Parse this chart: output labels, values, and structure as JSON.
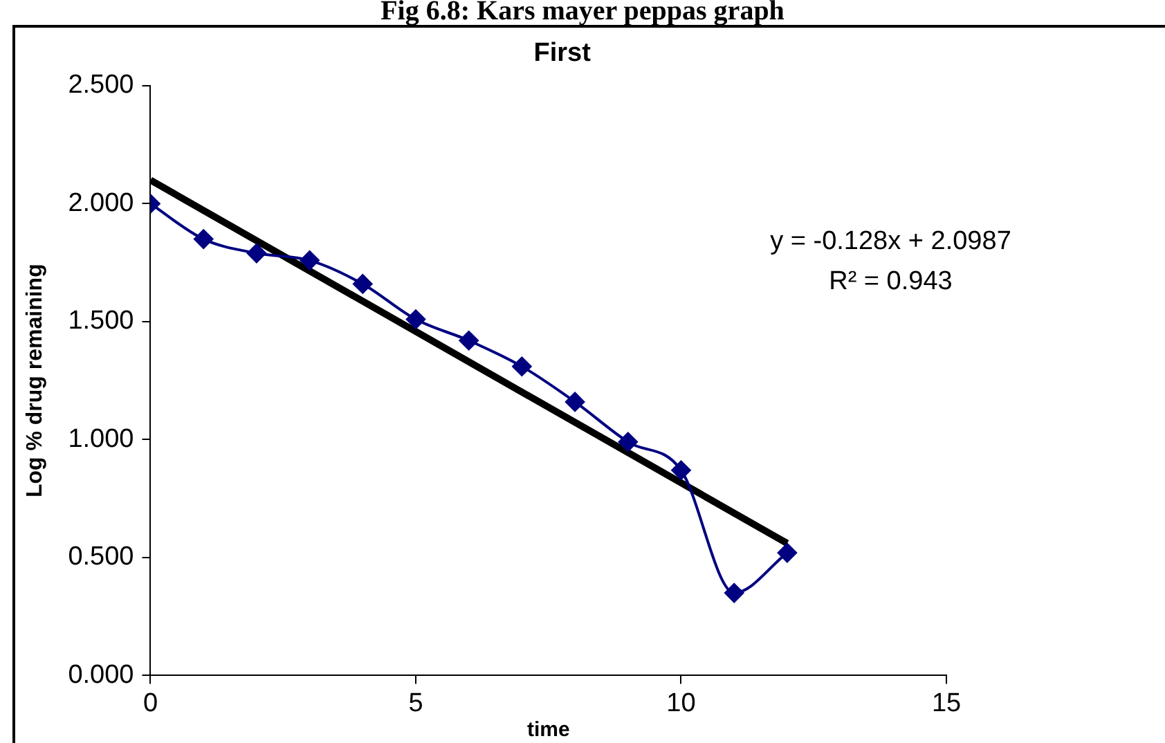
{
  "chart_data": {
    "type": "line",
    "title": "Fig 6.8: Kars mayer peppas graph",
    "subtitle": "First",
    "xlabel": "time",
    "ylabel": "Log % drug remaining",
    "x": [
      0,
      1,
      2,
      3,
      4,
      5,
      6,
      7,
      8,
      9,
      10,
      11,
      12
    ],
    "series": [
      {
        "color": "#000080",
        "marker": "diamond",
        "values": [
          2.0,
          1.85,
          1.79,
          1.76,
          1.66,
          1.51,
          1.42,
          1.31,
          1.16,
          0.99,
          0.87,
          0.35,
          0.52
        ]
      },
      {
        "color": "#000000",
        "marker": "none",
        "x": [
          0,
          12
        ],
        "values": [
          2.1,
          0.56
        ]
      }
    ],
    "xlim": [
      0,
      15
    ],
    "xticks": [
      0,
      5,
      10,
      15
    ],
    "ylim": [
      0,
      2.5
    ],
    "yticks": [
      {
        "value": 0,
        "label": "0.000"
      },
      {
        "value": 0.5,
        "label": "0.500"
      },
      {
        "value": 1,
        "label": "1.000"
      },
      {
        "value": 1.5,
        "label": "1.500"
      },
      {
        "value": 2,
        "label": "2.000"
      },
      {
        "value": 2.5,
        "label": "2.500"
      }
    ],
    "grid": false,
    "legend": false,
    "annotations": [
      "y = -0.128x + 2.0987",
      "R² = 0.943"
    ]
  }
}
